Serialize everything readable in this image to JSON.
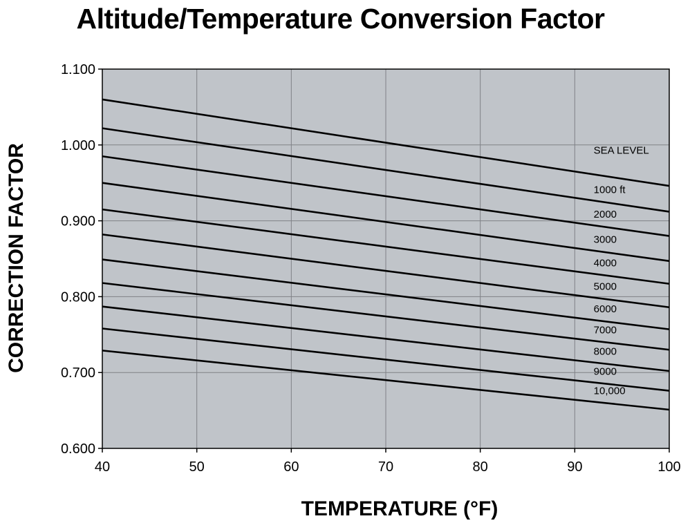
{
  "chart_data": {
    "type": "line",
    "title": "Altitude/Temperature Conversion Factor",
    "xlabel": "TEMPERATURE (°F)",
    "ylabel": "CORRECTION FACTOR",
    "xlim": [
      40,
      100
    ],
    "ylim": [
      0.6,
      1.1
    ],
    "xticks": [
      40,
      50,
      60,
      70,
      80,
      90,
      100
    ],
    "xtick_labels": [
      "40",
      "50",
      "60",
      "70",
      "80",
      "90",
      "100"
    ],
    "yticks": [
      0.6,
      0.7,
      0.8,
      0.9,
      1.0,
      1.1
    ],
    "ytick_labels": [
      "0.600",
      "0.700",
      "0.800",
      "0.900",
      "1.000",
      "1.100"
    ],
    "grid": true,
    "plot_background": "#c0c4c9",
    "line_color": "#000000",
    "series": [
      {
        "name": "SEA LEVEL",
        "x": [
          40,
          100
        ],
        "y": [
          1.06,
          0.946
        ]
      },
      {
        "name": "1000 ft",
        "x": [
          40,
          100
        ],
        "y": [
          1.022,
          0.912
        ]
      },
      {
        "name": "2000",
        "x": [
          40,
          100
        ],
        "y": [
          0.985,
          0.88
        ]
      },
      {
        "name": "3000",
        "x": [
          40,
          100
        ],
        "y": [
          0.95,
          0.847
        ]
      },
      {
        "name": "4000",
        "x": [
          40,
          100
        ],
        "y": [
          0.915,
          0.817
        ]
      },
      {
        "name": "5000",
        "x": [
          40,
          100
        ],
        "y": [
          0.882,
          0.786
        ]
      },
      {
        "name": "6000",
        "x": [
          40,
          100
        ],
        "y": [
          0.849,
          0.757
        ]
      },
      {
        "name": "7000",
        "x": [
          40,
          100
        ],
        "y": [
          0.818,
          0.73
        ]
      },
      {
        "name": "8000",
        "x": [
          40,
          100
        ],
        "y": [
          0.787,
          0.702
        ]
      },
      {
        "name": "9000",
        "x": [
          40,
          100
        ],
        "y": [
          0.758,
          0.676
        ]
      },
      {
        "name": "10,000",
        "x": [
          40,
          100
        ],
        "y": [
          0.729,
          0.651
        ]
      }
    ]
  }
}
